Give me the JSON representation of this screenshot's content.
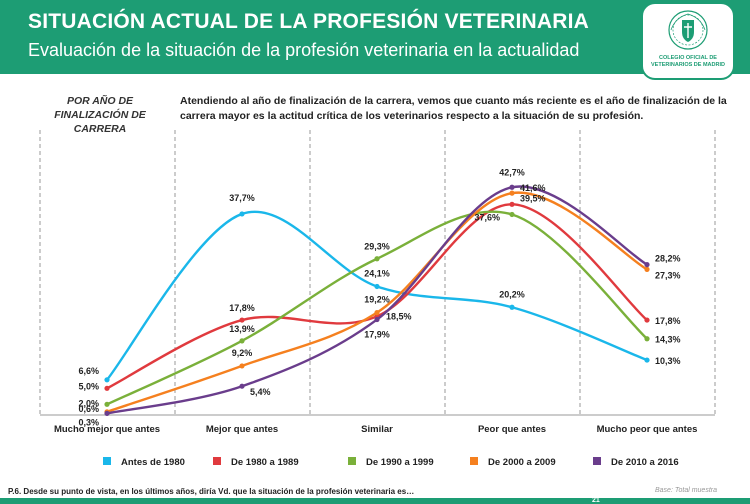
{
  "header": {
    "title": "SITUACIÓN ACTUAL DE LA PROFESIÓN VETERINARIA",
    "subtitle": "Evaluación de la situación de la profesión veterinaria en la actualidad"
  },
  "logo": {
    "text": "COLEGIO OFICIAL DE VETERINARIOS DE MADRID",
    "icon": "college-crest-icon"
  },
  "side_label": "POR AÑO DE FINALIZACIÓN DE CARRERA",
  "description": "Atendiendo al año de finalización de la carrera, vemos que cuanto más reciente es el año de finalización de la carrera mayor es la actitud crítica de los veterinarios respecto a la situación de su profesión.",
  "chart_data": {
    "type": "line",
    "categories": [
      "Mucho mejor que antes",
      "Mejor que antes",
      "Similar",
      "Peor que antes",
      "Mucho peor que antes"
    ],
    "ylim": [
      0,
      45
    ],
    "grid": "vertical-dashed",
    "legend_position": "bottom",
    "series": [
      {
        "name": "Antes de 1980",
        "color": "#1ab7ea",
        "values": [
          6.6,
          37.7,
          24.1,
          20.2,
          10.3
        ],
        "labels": [
          "6,6%",
          "37,7%",
          "24,1%",
          "20,2%",
          "10,3%"
        ]
      },
      {
        "name": "De 1980 a 1989",
        "color": "#e03a3e",
        "values": [
          5.0,
          17.8,
          18.5,
          39.5,
          17.8
        ],
        "labels": [
          "5,0%",
          "17,8%",
          "18,5%",
          "39,5%",
          "17,8%"
        ]
      },
      {
        "name": "De 1990 a 1999",
        "color": "#7ab03a",
        "values": [
          2.0,
          13.9,
          29.3,
          37.6,
          14.3
        ],
        "labels": [
          "2,0%",
          "13,9%",
          "29,3%",
          "37,6%",
          "14,3%"
        ]
      },
      {
        "name": "De 2000 a 2009",
        "color": "#f5801f",
        "values": [
          0.6,
          9.2,
          19.2,
          41.6,
          27.3
        ],
        "labels": [
          "0,6%",
          "9,2%",
          "19,2%",
          "41,6%",
          "27,3%"
        ]
      },
      {
        "name": "De 2010 a 2016",
        "color": "#6a3d8c",
        "values": [
          0.3,
          5.4,
          17.9,
          42.7,
          28.2
        ],
        "labels": [
          "0,3%",
          "5,4%",
          "17,9%",
          "42,7%",
          "28,2%"
        ]
      }
    ]
  },
  "footer": {
    "question": "P.6. Desde su punto de vista, en los últimos años, diría Vd. que la situación de la profesión veterinaria es…",
    "base": "Base: Total muestra",
    "page": "21"
  }
}
